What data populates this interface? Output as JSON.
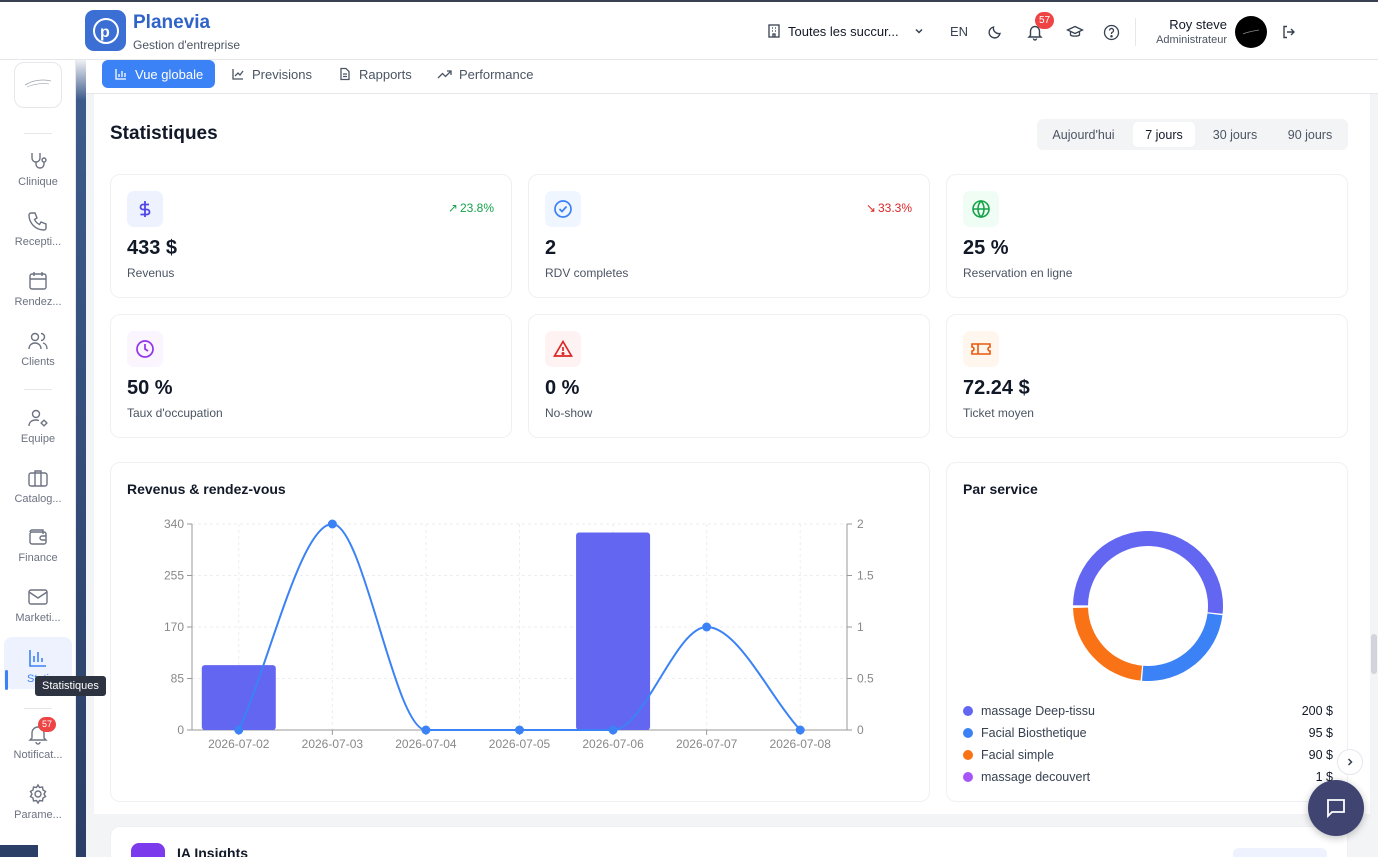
{
  "header": {
    "brand_name": "Planevia",
    "brand_sub": "Gestion d'entreprise",
    "branch_selector": "Toutes les succur...",
    "language": "EN",
    "notification_count": "57",
    "user_name": "Roy steve",
    "user_role": "Administrateur"
  },
  "sidebar": {
    "items": [
      {
        "label": "Clinique",
        "icon": "stethoscope-icon"
      },
      {
        "label": "Recepti...",
        "icon": "phone-icon"
      },
      {
        "label": "Rendez...",
        "icon": "calendar-icon"
      },
      {
        "label": "Clients",
        "icon": "users-icon"
      },
      {
        "label": "Equipe",
        "icon": "user-cog-icon"
      },
      {
        "label": "Catalog...",
        "icon": "briefcase-icon"
      },
      {
        "label": "Finance",
        "icon": "wallet-icon"
      },
      {
        "label": "Marketi...",
        "icon": "mail-icon"
      },
      {
        "label": "Stati",
        "icon": "bar-chart-icon"
      },
      {
        "label": "Notificat...",
        "icon": "bell-icon"
      },
      {
        "label": "Parame...",
        "icon": "settings-icon"
      }
    ],
    "notification_badge": "57",
    "tooltip": "Statistiques"
  },
  "tabs": [
    {
      "label": "Vue globale",
      "active": true
    },
    {
      "label": "Previsions",
      "active": false
    },
    {
      "label": "Rapports",
      "active": false
    },
    {
      "label": "Performance",
      "active": false
    }
  ],
  "stats": {
    "title": "Statistiques",
    "ranges": [
      {
        "label": "Aujourd'hui",
        "active": false
      },
      {
        "label": "7 jours",
        "active": true
      },
      {
        "label": "30 jours",
        "active": false
      },
      {
        "label": "90 jours",
        "active": false
      }
    ]
  },
  "kpis": [
    {
      "value": "433 $",
      "label": "Revenus",
      "trend": "23.8%",
      "trend_dir": "up",
      "icon": "dollar-icon",
      "color": "#4f46e5",
      "bg": "#eef2ff"
    },
    {
      "value": "2",
      "label": "RDV completes",
      "trend": "33.3%",
      "trend_dir": "down",
      "icon": "check-circle-icon",
      "color": "#3b82f6",
      "bg": "#eff6ff"
    },
    {
      "value": "25 %",
      "label": "Reservation en ligne",
      "trend": "",
      "trend_dir": "",
      "icon": "globe-icon",
      "color": "#16a34a",
      "bg": "#f0fdf4"
    },
    {
      "value": "50 %",
      "label": "Taux d'occupation",
      "trend": "",
      "trend_dir": "",
      "icon": "clock-icon",
      "color": "#9333ea",
      "bg": "#faf5ff"
    },
    {
      "value": "0 %",
      "label": "No-show",
      "trend": "",
      "trend_dir": "",
      "icon": "alert-triangle-icon",
      "color": "#dc2626",
      "bg": "#fef2f2"
    },
    {
      "value": "72.24 $",
      "label": "Ticket moyen",
      "trend": "",
      "trend_dir": "",
      "icon": "ticket-icon",
      "color": "#ea580c",
      "bg": "#fff7ed"
    }
  ],
  "chart_data": [
    {
      "type": "bar",
      "title": "Revenus & rendez-vous",
      "categories": [
        "2026-07-02",
        "2026-07-03",
        "2026-07-04",
        "2026-07-05",
        "2026-07-06",
        "2026-07-07",
        "2026-07-08"
      ],
      "series": [
        {
          "type": "bar",
          "axis": "left",
          "values": [
            107,
            0,
            0,
            0,
            326,
            0,
            0
          ],
          "color": "#6366f1"
        },
        {
          "type": "line",
          "axis": "right",
          "values": [
            0,
            2,
            0,
            0,
            0,
            1,
            0
          ],
          "color": "#3b82f6"
        }
      ],
      "y_left": {
        "ylim": [
          0,
          340
        ],
        "ticks": [
          "340",
          "255",
          "170",
          "85",
          "0"
        ]
      },
      "y_right": {
        "ylim": [
          0,
          2
        ],
        "ticks": [
          "2",
          "1.5",
          "1",
          "0.5",
          "0"
        ]
      },
      "grid": true
    },
    {
      "type": "pie",
      "title": "Par service",
      "series": [
        {
          "name": "massage Deep-tissu",
          "value": 200,
          "display": "200 $",
          "color": "#6366f1"
        },
        {
          "name": "Facial Biosthetique",
          "value": 95,
          "display": "95 $",
          "color": "#3b82f6"
        },
        {
          "name": "Facial simple",
          "value": 90,
          "display": "90 $",
          "color": "#f97316"
        },
        {
          "name": "massage decouvert",
          "value": 1,
          "display": "1 $",
          "color": "#a855f7"
        }
      ]
    }
  ],
  "insights": {
    "title": "IA Insights"
  }
}
